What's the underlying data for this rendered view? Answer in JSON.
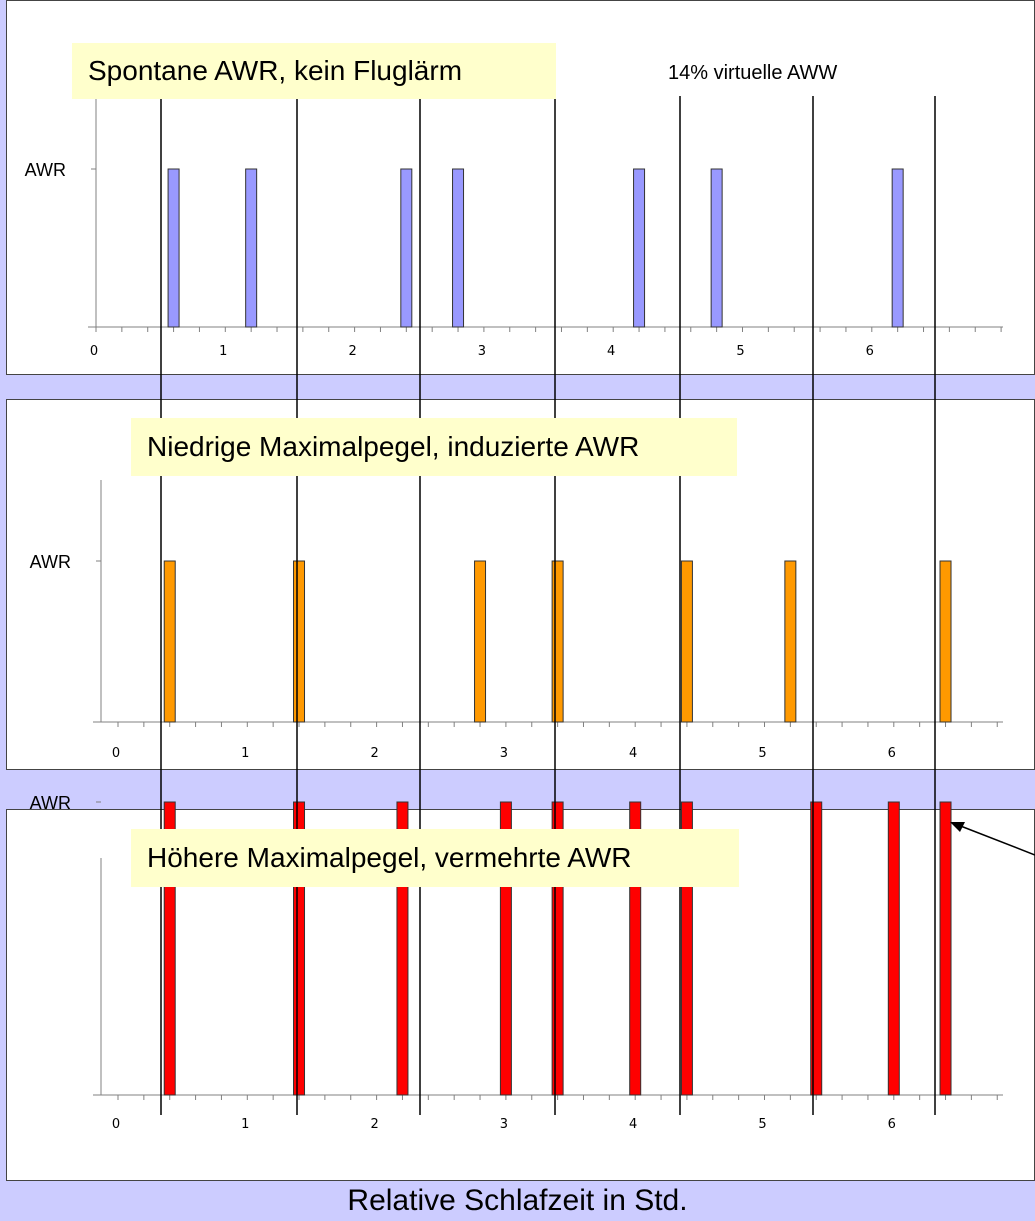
{
  "colors": {
    "background": "#ccccff",
    "panel": "#ffffff",
    "title_box": "#ffffcc",
    "bar_blue": "#9999ff",
    "bar_orange": "#ff9900",
    "bar_red": "#ff0000"
  },
  "annotation": "14% virtuelle AWW",
  "footer": "Relative Schlafzeit in Std.",
  "chart_data": [
    {
      "type": "bar",
      "title": "Spontane AWR, kein Fluglärm",
      "ylabel": "AWR",
      "xlabel": "",
      "xticks": [
        "0",
        "1",
        "2",
        "3",
        "4",
        "5",
        "6"
      ],
      "xlim": [
        -0.2,
        7.0
      ],
      "ylim": [
        0,
        1.5
      ],
      "bar_color": "#9999ff",
      "x": [
        0.6,
        1.2,
        2.4,
        2.8,
        4.2,
        4.8,
        6.2
      ],
      "values": [
        1,
        1,
        1,
        1,
        1,
        1,
        1
      ]
    },
    {
      "type": "bar",
      "title": "Niedrige Maximalpegel, induzierte AWR",
      "ylabel": "AWR",
      "xlabel": "",
      "xticks": [
        "0",
        "1",
        "2",
        "3",
        "4",
        "5",
        "6"
      ],
      "xlim": [
        -0.2,
        7.0
      ],
      "ylim": [
        0,
        1.5
      ],
      "bar_color": "#ff9900",
      "x": [
        0.4,
        1.4,
        2.8,
        3.4,
        4.4,
        5.2,
        6.4
      ],
      "values": [
        1,
        1,
        1,
        1,
        1,
        1,
        1
      ]
    },
    {
      "type": "bar",
      "title": "Höhere Maximalpegel, vermehrte AWR",
      "ylabel": "AWR",
      "xlabel": "",
      "xticks": [
        "0",
        "1",
        "2",
        "3",
        "4",
        "5",
        "6"
      ],
      "xlim": [
        -0.2,
        7.0
      ],
      "ylim": [
        0,
        1.5
      ],
      "bar_color": "#ff0000",
      "x": [
        0.4,
        1.4,
        2.2,
        3.0,
        3.4,
        4.0,
        4.4,
        5.4,
        6.0,
        6.4
      ],
      "values": [
        1,
        1,
        1,
        1,
        1,
        1,
        1,
        1,
        1,
        1
      ]
    }
  ]
}
